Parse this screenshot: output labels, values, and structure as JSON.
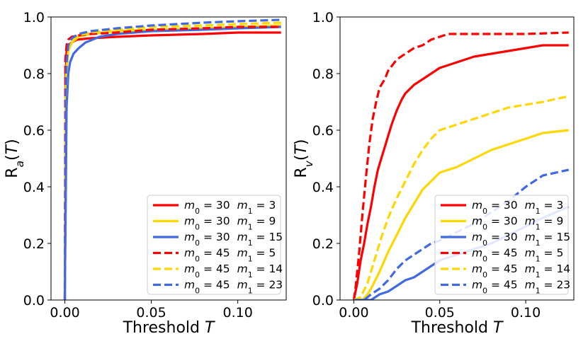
{
  "chart_data": [
    {
      "type": "line",
      "panel": "left",
      "xlabel": "Threshold T",
      "ylabel": "R_a(T)",
      "xlim": [
        -0.008,
        0.128
      ],
      "ylim": [
        0.0,
        1.0
      ],
      "xticks": [
        {
          "value": 0.0,
          "label": "0.00"
        },
        {
          "value": 0.05,
          "label": "0.05"
        },
        {
          "value": 0.1,
          "label": "0.10"
        }
      ],
      "yticks": [
        {
          "value": 0.0,
          "label": "0.0"
        },
        {
          "value": 0.2,
          "label": "0.2"
        },
        {
          "value": 0.4,
          "label": "0.4"
        },
        {
          "value": 0.6,
          "label": "0.6"
        },
        {
          "value": 0.8,
          "label": "0.8"
        },
        {
          "value": 1.0,
          "label": "1.0"
        }
      ],
      "legend_position": "lower-right",
      "series": [
        {
          "name": "m0=30 m1=3",
          "color": "#ff0000",
          "dash": "solid",
          "x": [
            0,
            0.0005,
            0.001,
            0.002,
            0.004,
            0.007,
            0.015,
            0.03,
            0.05,
            0.08,
            0.1,
            0.125
          ],
          "y": [
            0,
            0.8,
            0.88,
            0.9,
            0.91,
            0.92,
            0.925,
            0.93,
            0.935,
            0.94,
            0.945,
            0.945
          ]
        },
        {
          "name": "m0=30 m1=9",
          "color": "#ffd700",
          "dash": "solid",
          "x": [
            0,
            0.0005,
            0.001,
            0.002,
            0.004,
            0.008,
            0.015,
            0.03,
            0.05,
            0.08,
            0.1,
            0.125
          ],
          "y": [
            0,
            0.72,
            0.82,
            0.88,
            0.91,
            0.93,
            0.94,
            0.95,
            0.955,
            0.96,
            0.965,
            0.97
          ]
        },
        {
          "name": "m0=30 m1=15",
          "color": "#4169e1",
          "dash": "solid",
          "x": [
            0,
            0.001,
            0.002,
            0.003,
            0.005,
            0.008,
            0.012,
            0.02,
            0.03,
            0.05,
            0.08,
            0.1,
            0.125
          ],
          "y": [
            0,
            0.68,
            0.8,
            0.84,
            0.87,
            0.89,
            0.91,
            0.93,
            0.94,
            0.95,
            0.955,
            0.96,
            0.965
          ]
        },
        {
          "name": "m0=45 m1=5",
          "color": "#ff0000",
          "dash": "dashed",
          "x": [
            0,
            0.0003,
            0.001,
            0.002,
            0.004,
            0.008,
            0.015,
            0.03,
            0.05,
            0.08,
            0.1,
            0.125
          ],
          "y": [
            0,
            0.85,
            0.9,
            0.92,
            0.93,
            0.935,
            0.94,
            0.945,
            0.955,
            0.96,
            0.965,
            0.965
          ]
        },
        {
          "name": "m0=45 m1=14",
          "color": "#ffd700",
          "dash": "dashed",
          "x": [
            0,
            0.0005,
            0.001,
            0.002,
            0.004,
            0.008,
            0.015,
            0.03,
            0.05,
            0.08,
            0.1,
            0.125
          ],
          "y": [
            0,
            0.66,
            0.8,
            0.88,
            0.92,
            0.935,
            0.945,
            0.955,
            0.965,
            0.97,
            0.975,
            0.98
          ]
        },
        {
          "name": "m0=45 m1=23",
          "color": "#4169e1",
          "dash": "dashed",
          "x": [
            0,
            0.0005,
            0.001,
            0.002,
            0.004,
            0.008,
            0.015,
            0.03,
            0.05,
            0.08,
            0.1,
            0.125
          ],
          "y": [
            0,
            0.7,
            0.84,
            0.9,
            0.925,
            0.94,
            0.95,
            0.96,
            0.97,
            0.98,
            0.985,
            0.99
          ]
        }
      ]
    },
    {
      "type": "line",
      "panel": "right",
      "xlabel": "Threshold T",
      "ylabel": "R_v(T)",
      "xlim": [
        -0.008,
        0.128
      ],
      "ylim": [
        0.0,
        1.0
      ],
      "xticks": [
        {
          "value": 0.0,
          "label": "0.00"
        },
        {
          "value": 0.05,
          "label": "0.05"
        },
        {
          "value": 0.1,
          "label": "0.10"
        }
      ],
      "yticks": [
        {
          "value": 0.0,
          "label": "0.0"
        },
        {
          "value": 0.2,
          "label": "0.2"
        },
        {
          "value": 0.4,
          "label": "0.4"
        },
        {
          "value": 0.6,
          "label": "0.6"
        },
        {
          "value": 0.8,
          "label": "0.8"
        },
        {
          "value": 1.0,
          "label": "1.0"
        }
      ],
      "legend_position": "lower-right",
      "series": [
        {
          "name": "m0=30 m1=3",
          "color": "#ff0000",
          "dash": "solid",
          "x": [
            0,
            0.002,
            0.004,
            0.006,
            0.008,
            0.01,
            0.012,
            0.014,
            0.016,
            0.018,
            0.02,
            0.022,
            0.025,
            0.028,
            0.03,
            0.035,
            0.04,
            0.045,
            0.05,
            0.055,
            0.06,
            0.07,
            0.08,
            0.09,
            0.1,
            0.11,
            0.125
          ],
          "y": [
            0,
            0.06,
            0.14,
            0.2,
            0.27,
            0.33,
            0.4,
            0.46,
            0.5,
            0.54,
            0.58,
            0.62,
            0.67,
            0.71,
            0.73,
            0.76,
            0.78,
            0.8,
            0.82,
            0.83,
            0.84,
            0.86,
            0.87,
            0.88,
            0.89,
            0.9,
            0.9
          ]
        },
        {
          "name": "m0=30 m1=9",
          "color": "#ffd700",
          "dash": "solid",
          "x": [
            0,
            0.005,
            0.008,
            0.01,
            0.015,
            0.02,
            0.025,
            0.03,
            0.035,
            0.04,
            0.045,
            0.05,
            0.06,
            0.07,
            0.08,
            0.09,
            0.1,
            0.11,
            0.125
          ],
          "y": [
            0,
            0.0,
            0.02,
            0.04,
            0.1,
            0.17,
            0.23,
            0.29,
            0.34,
            0.39,
            0.42,
            0.45,
            0.47,
            0.5,
            0.53,
            0.55,
            0.57,
            0.59,
            0.6
          ]
        },
        {
          "name": "m0=30 m1=15",
          "color": "#4169e1",
          "dash": "solid",
          "x": [
            0,
            0.01,
            0.015,
            0.02,
            0.025,
            0.03,
            0.035,
            0.04,
            0.045,
            0.05,
            0.06,
            0.07,
            0.08,
            0.09,
            0.1,
            0.11,
            0.125
          ],
          "y": [
            0,
            0.0,
            0.02,
            0.03,
            0.05,
            0.07,
            0.08,
            0.1,
            0.12,
            0.14,
            0.16,
            0.18,
            0.2,
            0.23,
            0.26,
            0.29,
            0.33
          ]
        },
        {
          "name": "m0=45 m1=5",
          "color": "#ff0000",
          "dash": "dashed",
          "x": [
            0,
            0.001,
            0.003,
            0.005,
            0.007,
            0.009,
            0.011,
            0.013,
            0.015,
            0.018,
            0.02,
            0.025,
            0.03,
            0.035,
            0.04,
            0.045,
            0.05,
            0.055,
            0.06,
            0.08,
            0.1,
            0.125
          ],
          "y": [
            0,
            0.04,
            0.16,
            0.3,
            0.43,
            0.55,
            0.64,
            0.7,
            0.75,
            0.78,
            0.81,
            0.85,
            0.87,
            0.89,
            0.9,
            0.92,
            0.93,
            0.94,
            0.94,
            0.94,
            0.94,
            0.945
          ]
        },
        {
          "name": "m0=45 m1=14",
          "color": "#ffd700",
          "dash": "dashed",
          "x": [
            0,
            0.004,
            0.008,
            0.012,
            0.016,
            0.02,
            0.025,
            0.03,
            0.035,
            0.04,
            0.045,
            0.05,
            0.06,
            0.07,
            0.08,
            0.09,
            0.1,
            0.11,
            0.125
          ],
          "y": [
            0,
            0.01,
            0.06,
            0.14,
            0.22,
            0.29,
            0.36,
            0.42,
            0.48,
            0.53,
            0.57,
            0.6,
            0.62,
            0.64,
            0.66,
            0.68,
            0.69,
            0.7,
            0.72
          ]
        },
        {
          "name": "m0=45 m1=23",
          "color": "#4169e1",
          "dash": "dashed",
          "x": [
            0,
            0.006,
            0.01,
            0.015,
            0.02,
            0.025,
            0.03,
            0.035,
            0.04,
            0.045,
            0.05,
            0.06,
            0.07,
            0.08,
            0.09,
            0.1,
            0.11,
            0.125
          ],
          "y": [
            0,
            0.0,
            0.02,
            0.04,
            0.07,
            0.11,
            0.14,
            0.16,
            0.18,
            0.2,
            0.21,
            0.24,
            0.27,
            0.31,
            0.35,
            0.4,
            0.44,
            0.46
          ]
        }
      ]
    }
  ]
}
